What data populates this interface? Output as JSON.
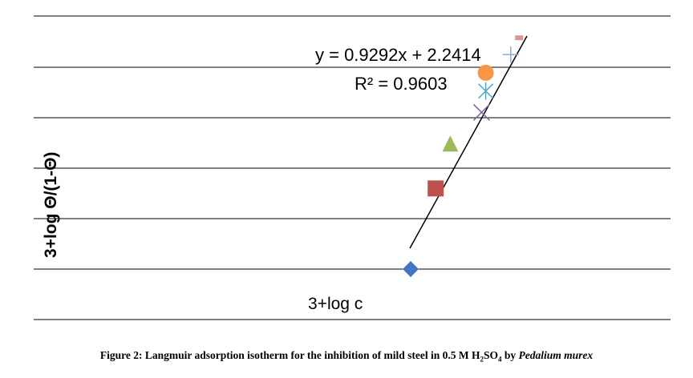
{
  "chart_data": {
    "type": "scatter",
    "ylabel": "3+log  Θ/(1-Θ)",
    "xlabel": "3+log c",
    "trendline": {
      "equation": "y = 0.9292x + 2.2414",
      "r_squared": "R² = 0.9603",
      "slope": 0.9292,
      "intercept": 2.2414
    },
    "grid": true,
    "ylim": [
      0,
      1.1
    ],
    "xlim": [
      0,
      1.1
    ],
    "series": [
      {
        "marker": "diamond",
        "color": "#4472c4",
        "x": 0.0,
        "y": 0.0
      },
      {
        "marker": "square",
        "color": "#c0504d",
        "x": 0.12,
        "y": 0.53
      },
      {
        "marker": "triangle",
        "color": "#9bbb59",
        "x": 0.19,
        "y": 0.82
      },
      {
        "marker": "x",
        "color": "#8064a2",
        "x": 0.34,
        "y": 1.03
      },
      {
        "marker": "asterisk",
        "color": "#4bacc6",
        "x": 0.36,
        "y": 1.17
      },
      {
        "marker": "circle",
        "color": "#f79646",
        "x": 0.36,
        "y": 1.29
      },
      {
        "marker": "plus",
        "color": "#8ea9db",
        "x": 0.48,
        "y": 1.41
      },
      {
        "marker": "dash",
        "color": "#d99694",
        "x": 0.52,
        "y": 1.52
      }
    ]
  },
  "caption": {
    "prefix": "Figure 2: Langmuir adsorption isotherm for the inhibition of mild steel in 0.5 M H",
    "sub1": "2",
    "mid": "SO",
    "sub2": "4",
    "by": " by ",
    "species": "Pedalium murex"
  }
}
